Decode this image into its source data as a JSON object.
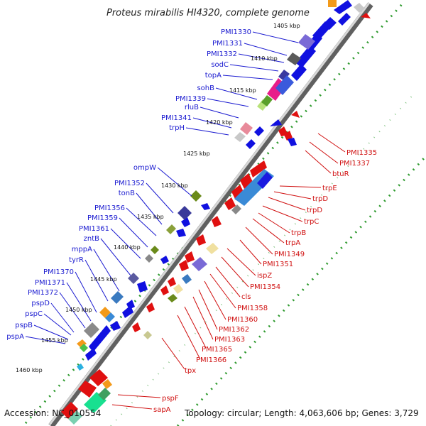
{
  "title": "Proteus mirabilis HI4320, complete genome",
  "accession": "Accession: NC_010554",
  "topology": "Topology: circular; Length: 4,063,606 bp; Genes: 3,729",
  "ticks": [
    "1405 kbp",
    "1410 kbp",
    "1415 kbp",
    "1420 kbp",
    "1425 kbp",
    "1430 kbp",
    "1435 kbp",
    "1440 kbp",
    "1445 kbp",
    "1450 kbp",
    "1455 kbp",
    "1460 kbp"
  ],
  "forward_genes": [
    "PMI1330",
    "PMI1331",
    "PMI1332",
    "sodC",
    "topA",
    "sohB",
    "PMI1339",
    "rluB",
    "PMI1341",
    "trpH",
    "ompW",
    "PMI1352",
    "tonB",
    "PMI1356",
    "PMI1359",
    "PMI1361",
    "zntB",
    "mppA",
    "tyrR",
    "PMI1370",
    "PMI1371",
    "PMI1372",
    "pspD",
    "pspC",
    "pspB",
    "pspA"
  ],
  "reverse_genes": [
    "PMI1335",
    "PMI1337",
    "btuR",
    "trpE",
    "trpD",
    "trpD",
    "trpC",
    "trpB",
    "trpA",
    "PMI1349",
    "PMI1351",
    "ispZ",
    "PMI1354",
    "cls",
    "PMI1358",
    "PMI1360",
    "PMI1362",
    "PMI1363",
    "PMI1365",
    "PMI1366",
    "tpx",
    "pspF",
    "sapA"
  ],
  "colors": {
    "forward": "#1a1ad0",
    "reverse": "#d01010",
    "backbone": "#8a8a8a",
    "gc_dots": "#2e9a2e"
  }
}
